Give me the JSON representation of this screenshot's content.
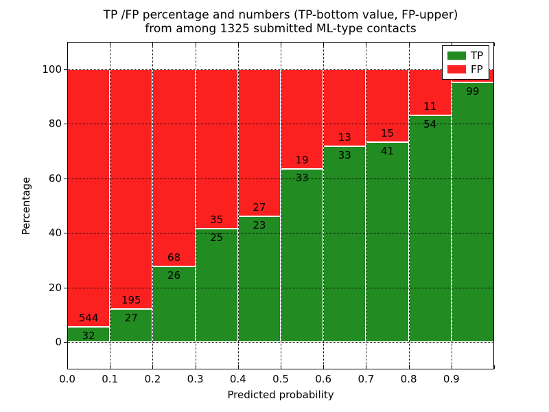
{
  "title": {
    "line1": "TP /FP percentage and numbers (TP-bottom value, FP-upper)",
    "line2": "from among 1325 submitted ML-type contacts"
  },
  "axes": {
    "xlabel": "Predicted probability",
    "ylabel": "Percentage",
    "xtick_labels": [
      "0.0",
      "0.1",
      "0.2",
      "0.3",
      "0.4",
      "0.5",
      "0.6",
      "0.7",
      "0.8",
      "0.9"
    ],
    "ytick_labels": [
      "0",
      "20",
      "40",
      "60",
      "80",
      "100"
    ]
  },
  "legend": {
    "items": [
      {
        "label": "TP",
        "color": "#228b22"
      },
      {
        "label": "FP",
        "color": "#fc2121"
      }
    ]
  },
  "chart_data": {
    "type": "bar",
    "stacked": true,
    "title": "TP /FP percentage and numbers (TP-bottom value, FP-upper) from among 1325 submitted ML-type contacts",
    "xlabel": "Predicted probability",
    "ylabel": "Percentage",
    "xlim": [
      0,
      1
    ],
    "ylim": [
      -10,
      110
    ],
    "grid": "dotted-black",
    "legend_position": "upper-right",
    "x_bin_edges": [
      0.0,
      0.1,
      0.2,
      0.3,
      0.4,
      0.5,
      0.6,
      0.7,
      0.8,
      0.9,
      1.0
    ],
    "xticks": [
      0,
      0.1,
      0.2,
      0.3,
      0.4,
      0.5,
      0.6,
      0.7,
      0.8,
      0.9,
      1.0
    ],
    "yticks": [
      0,
      20,
      40,
      60,
      80,
      100
    ],
    "series": [
      {
        "name": "TP",
        "color": "#228b22",
        "pct": [
          5.56,
          12.16,
          27.66,
          41.67,
          46.0,
          63.46,
          71.74,
          73.21,
          83.08,
          95.19
        ],
        "count_labels": [
          "32",
          "27",
          "26",
          "25",
          "23",
          "33",
          "33",
          "41",
          "54",
          "99"
        ]
      },
      {
        "name": "FP",
        "color": "#fc2121",
        "pct": [
          94.44,
          87.84,
          72.34,
          58.33,
          54.0,
          36.54,
          28.26,
          26.79,
          16.92,
          4.81
        ],
        "count_labels": [
          "544",
          "195",
          "68",
          "35",
          "27",
          "19",
          "13",
          "15",
          "11",
          ""
        ]
      }
    ]
  }
}
